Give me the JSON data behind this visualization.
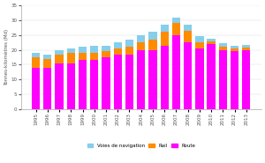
{
  "years": [
    "1995",
    "1996",
    "1997",
    "1998",
    "1999",
    "2000",
    "2001",
    "2002",
    "2003",
    "2004",
    "2005",
    "2006",
    "2007",
    "2008",
    "2009",
    "2010",
    "2011",
    "2012",
    "2013"
  ],
  "route": [
    14.0,
    14.0,
    15.5,
    15.5,
    16.5,
    16.5,
    17.5,
    18.5,
    18.5,
    20.0,
    20.0,
    21.5,
    25.0,
    22.5,
    20.5,
    22.0,
    20.0,
    19.5,
    20.0
  ],
  "rail": [
    3.5,
    3.0,
    3.0,
    3.5,
    2.5,
    2.5,
    2.0,
    2.0,
    2.5,
    2.5,
    3.5,
    4.5,
    4.0,
    4.0,
    2.0,
    0.8,
    1.2,
    1.0,
    0.8
  ],
  "voies": [
    1.5,
    1.5,
    1.5,
    1.5,
    2.0,
    2.5,
    2.0,
    2.0,
    2.5,
    2.5,
    2.5,
    2.5,
    2.0,
    2.0,
    2.0,
    1.0,
    1.0,
    0.8,
    1.0
  ],
  "color_route": "#ff00ff",
  "color_rail": "#ff8c00",
  "color_voies": "#87ceeb",
  "ylabel": "Tonnes-kilomètres (Md)",
  "ylim": [
    0,
    35
  ],
  "yticks": [
    0,
    5,
    10,
    15,
    20,
    25,
    30,
    35
  ],
  "legend_voies": "Voies de navigation",
  "legend_rail": "Rail",
  "legend_route": "Route",
  "bar_width": 0.7
}
